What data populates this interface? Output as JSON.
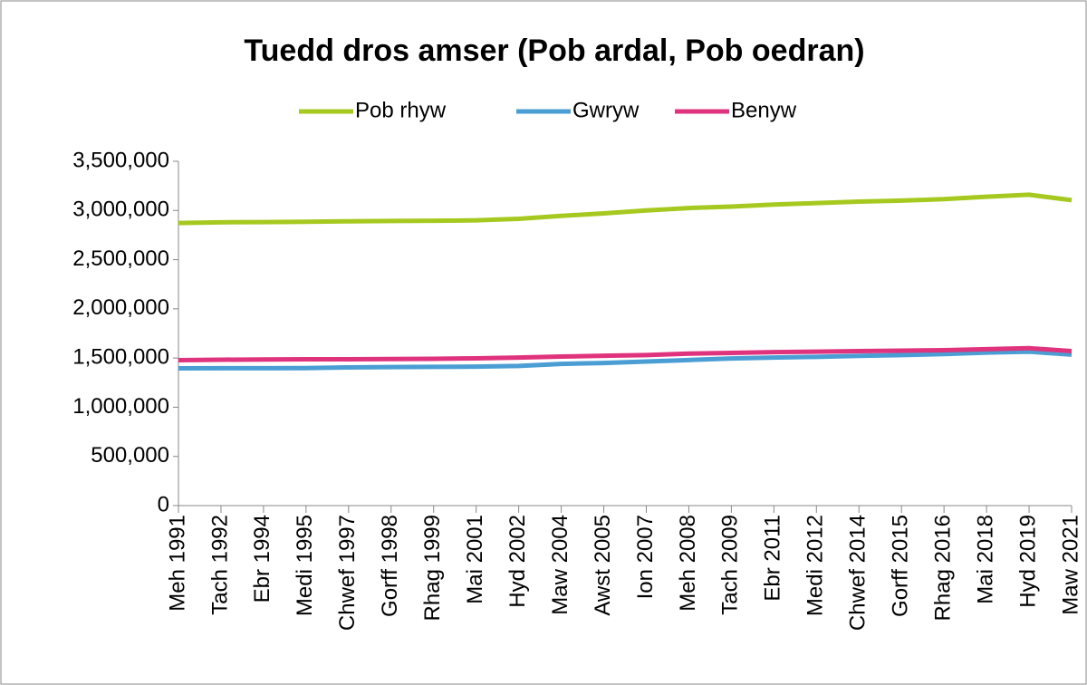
{
  "chart_data": {
    "type": "line",
    "title": "Tuedd dros amser (Pob ardal, Pob oedran)",
    "categories": [
      "Meh 1991",
      "Tach 1992",
      "Ebr 1994",
      "Medi 1995",
      "Chwef 1997",
      "Gorff 1998",
      "Rhag 1999",
      "Mai 2001",
      "Hyd 2002",
      "Maw 2004",
      "Awst 2005",
      "Ion 2007",
      "Meh 2008",
      "Tach 2009",
      "Ebr 2011",
      "Medi 2012",
      "Chwef 2014",
      "Gorff 2015",
      "Rhag 2016",
      "Mai 2018",
      "Hyd 2019",
      "Maw 2021"
    ],
    "series": [
      {
        "name": "Pob rhyw",
        "color": "#a6c91f",
        "values": [
          2873000,
          2880000,
          2882000,
          2885000,
          2890000,
          2893000,
          2895000,
          2900000,
          2915000,
          2945000,
          2970000,
          3000000,
          3025000,
          3040000,
          3060000,
          3075000,
          3090000,
          3100000,
          3115000,
          3140000,
          3160000,
          3105000
        ]
      },
      {
        "name": "Gwryw",
        "color": "#4a9ed4",
        "values": [
          1395000,
          1397000,
          1397000,
          1398000,
          1405000,
          1408000,
          1410000,
          1413000,
          1420000,
          1440000,
          1450000,
          1465000,
          1480000,
          1495000,
          1505000,
          1512000,
          1522000,
          1530000,
          1540000,
          1555000,
          1565000,
          1535000
        ]
      },
      {
        "name": "Benyw",
        "color": "#e0337d",
        "values": [
          1478000,
          1483000,
          1485000,
          1487000,
          1488000,
          1490000,
          1492000,
          1497000,
          1505000,
          1515000,
          1523000,
          1530000,
          1545000,
          1552000,
          1560000,
          1565000,
          1570000,
          1575000,
          1580000,
          1590000,
          1600000,
          1570000
        ]
      }
    ],
    "ylim": [
      0,
      3500000
    ],
    "yticks": [
      0,
      {
        "value": 500000,
        "label": "500,000"
      },
      {
        "value": 1000000,
        "label": "1,000,000"
      },
      {
        "value": 1500000,
        "label": "1,500,000"
      },
      {
        "value": 2000000,
        "label": "2,000,000"
      },
      {
        "value": 2500000,
        "label": "2,500,000"
      },
      {
        "value": 3000000,
        "label": "3,000,000"
      },
      {
        "value": 3500000,
        "label": "3,500,000"
      }
    ],
    "legend": "top"
  }
}
